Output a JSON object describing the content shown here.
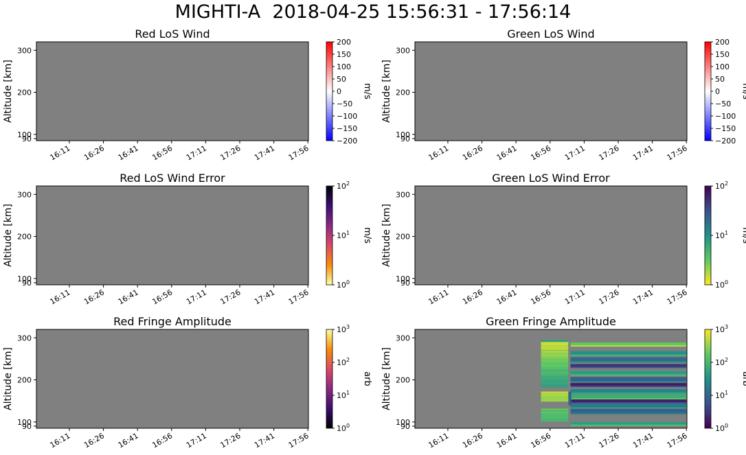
{
  "figure": {
    "title": "MIGHTI-A  2018-04-25 15:56:31 - 17:56:14"
  },
  "colors": {
    "no_data": "#808080"
  },
  "chart_data": [
    {
      "type": "heatmap",
      "title": "Red LoS Wind",
      "ylabel": "Altitude [km]",
      "x_ticks": [
        "16:11",
        "16:26",
        "16:41",
        "16:56",
        "17:11",
        "17:26",
        "17:41",
        "17:56"
      ],
      "y_ticks": [
        "300",
        "200",
        "100",
        "90"
      ],
      "colorbar": {
        "label": "m/s",
        "scale": "linear",
        "range": [
          -200,
          200
        ],
        "colormap": "bwr",
        "ticks": [
          "200",
          "150",
          "100",
          "50",
          "0",
          "−50",
          "−100",
          "−150",
          "−200"
        ]
      },
      "data_present": false
    },
    {
      "type": "heatmap",
      "title": "Green LoS Wind",
      "ylabel": "Altitude [km]",
      "x_ticks": [
        "16:11",
        "16:26",
        "16:41",
        "16:56",
        "17:11",
        "17:26",
        "17:41",
        "17:56"
      ],
      "y_ticks": [
        "300",
        "200",
        "100",
        "90"
      ],
      "colorbar": {
        "label": "m/s",
        "scale": "linear",
        "range": [
          -200,
          200
        ],
        "colormap": "bwr",
        "ticks": [
          "200",
          "150",
          "100",
          "50",
          "0",
          "−50",
          "−100",
          "−150",
          "−200"
        ]
      },
      "data_present": false
    },
    {
      "type": "heatmap",
      "title": "Red LoS Wind Error",
      "ylabel": "Altitude [km]",
      "x_ticks": [
        "16:11",
        "16:26",
        "16:41",
        "16:56",
        "17:11",
        "17:26",
        "17:41",
        "17:56"
      ],
      "y_ticks": [
        "300",
        "200",
        "100",
        "90"
      ],
      "colorbar": {
        "label": "m/s",
        "scale": "log",
        "range": [
          1,
          100
        ],
        "colormap": "inferno_r",
        "ticks": [
          {
            "base": "10",
            "exp": "2"
          },
          {
            "base": "10",
            "exp": "1"
          },
          {
            "base": "10",
            "exp": "0"
          }
        ]
      },
      "data_present": false
    },
    {
      "type": "heatmap",
      "title": "Green LoS Wind Error",
      "ylabel": "Altitude [km]",
      "x_ticks": [
        "16:11",
        "16:26",
        "16:41",
        "16:56",
        "17:11",
        "17:26",
        "17:41",
        "17:56"
      ],
      "y_ticks": [
        "300",
        "200",
        "100",
        "90"
      ],
      "colorbar": {
        "label": "m/s",
        "scale": "log",
        "range": [
          1,
          100
        ],
        "colormap": "viridis_r",
        "ticks": [
          {
            "base": "10",
            "exp": "2"
          },
          {
            "base": "10",
            "exp": "1"
          },
          {
            "base": "10",
            "exp": "0"
          }
        ]
      },
      "data_present": false
    },
    {
      "type": "heatmap",
      "title": "Red Fringe Amplitude",
      "ylabel": "Altitude [km]",
      "x_ticks": [
        "16:11",
        "16:26",
        "16:41",
        "16:56",
        "17:11",
        "17:26",
        "17:41",
        "17:56"
      ],
      "y_ticks": [
        "300",
        "200",
        "100",
        "90"
      ],
      "colorbar": {
        "label": "arb",
        "scale": "log",
        "range": [
          1,
          1000
        ],
        "colormap": "inferno",
        "ticks": [
          {
            "base": "10",
            "exp": "3"
          },
          {
            "base": "10",
            "exp": "2"
          },
          {
            "base": "10",
            "exp": "1"
          },
          {
            "base": "10",
            "exp": "0"
          }
        ]
      },
      "data_present": false
    },
    {
      "type": "heatmap",
      "title": "Green Fringe Amplitude",
      "ylabel": "Altitude [km]",
      "x_ticks": [
        "16:11",
        "16:26",
        "16:41",
        "16:56",
        "17:11",
        "17:26",
        "17:41",
        "17:56"
      ],
      "y_ticks": [
        "300",
        "200",
        "100",
        "90"
      ],
      "colorbar": {
        "label": "arb",
        "scale": "log",
        "range": [
          1,
          1000
        ],
        "colormap": "viridis",
        "ticks": [
          {
            "base": "10",
            "exp": "3"
          },
          {
            "base": "10",
            "exp": "2"
          },
          {
            "base": "10",
            "exp": "1"
          },
          {
            "base": "10",
            "exp": "0"
          }
        ]
      },
      "data_present": true,
      "data_time_range": [
        "16:52",
        "17:56"
      ],
      "data_gap": [
        "17:04",
        "17:05"
      ],
      "data_altitude_range": [
        90,
        295
      ]
    }
  ]
}
